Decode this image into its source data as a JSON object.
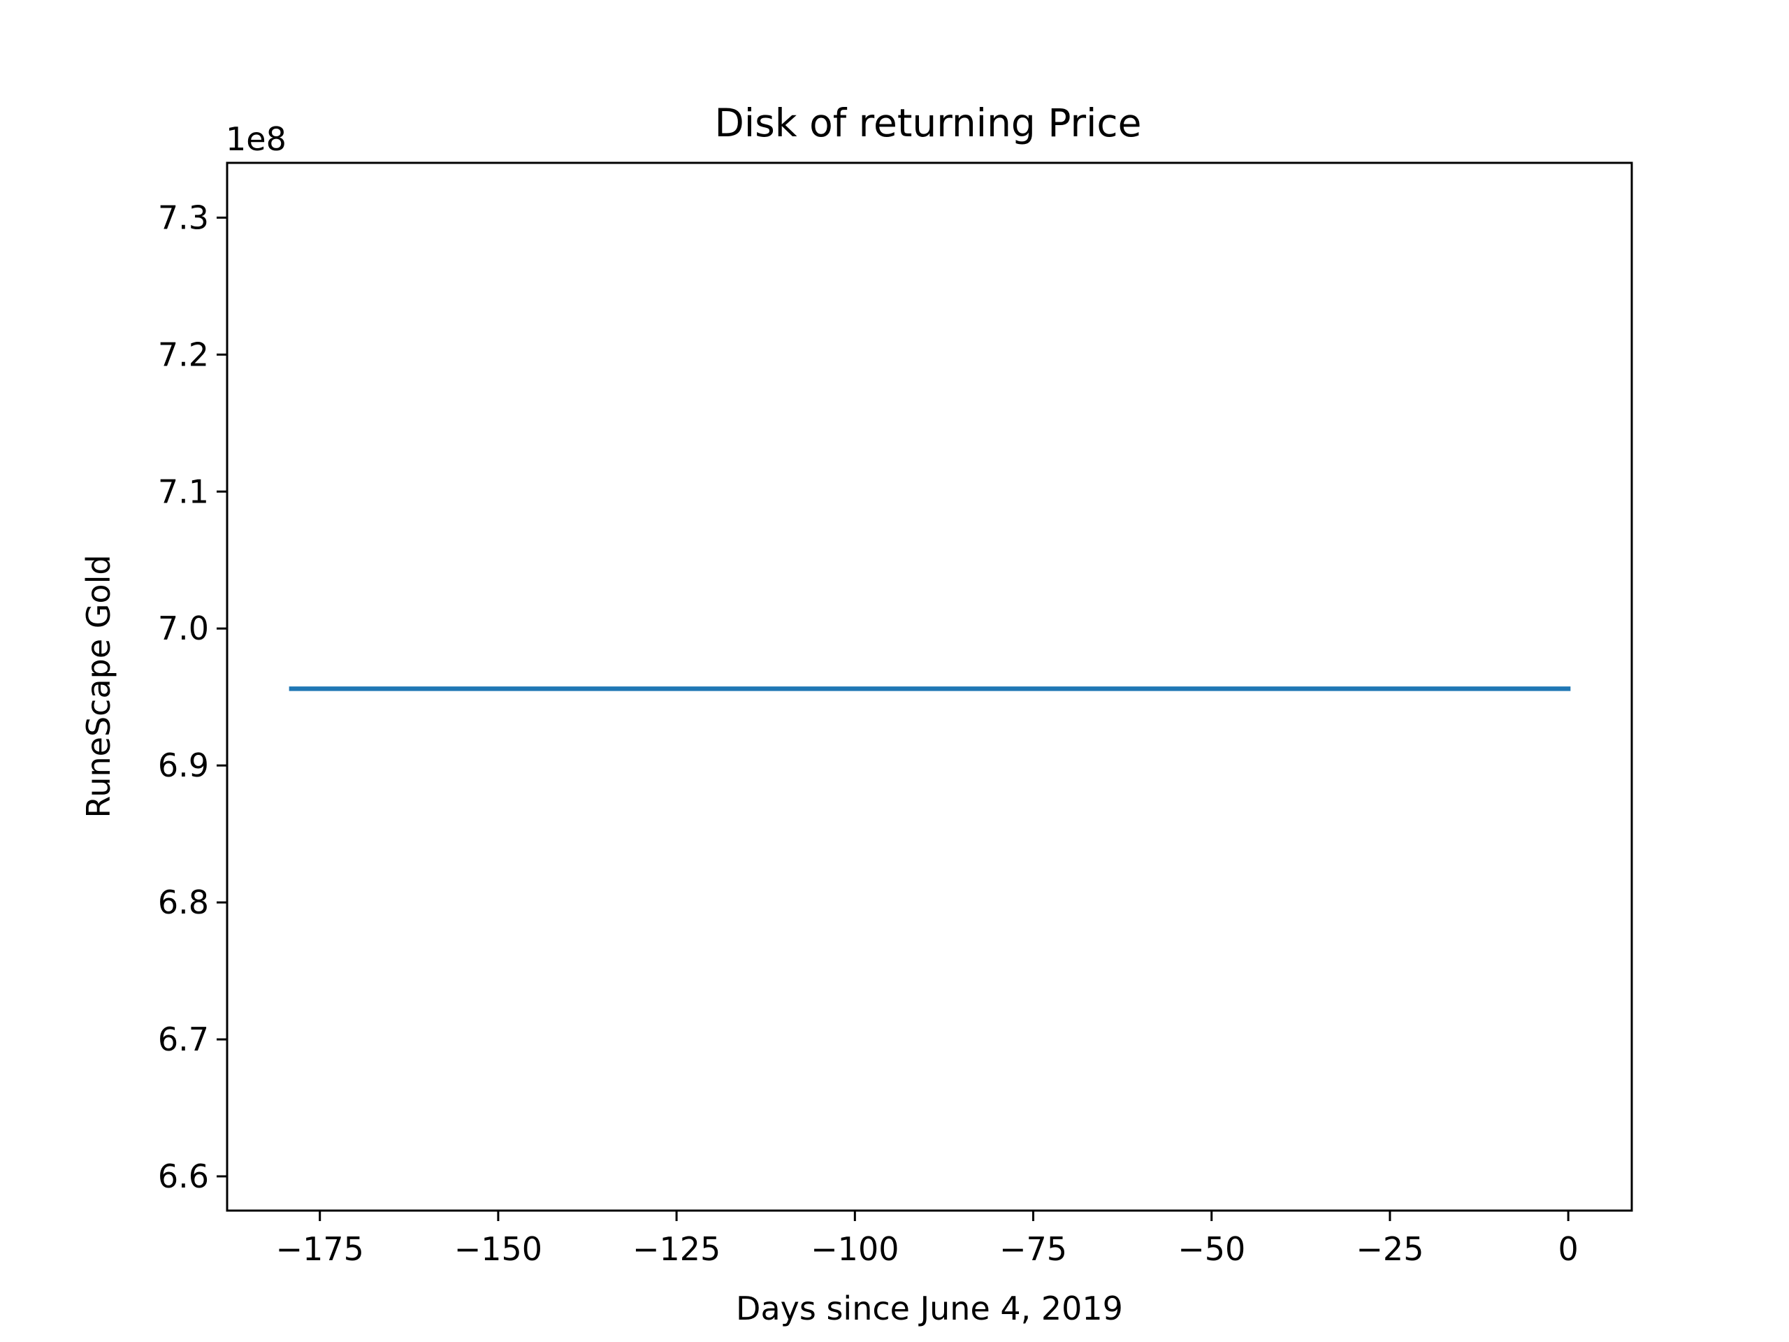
{
  "chart_data": {
    "type": "line",
    "title": "Disk of returning Price",
    "xlabel": "Days since June 4, 2019",
    "ylabel": "RuneScape Gold",
    "y_offset_label": "1e8",
    "xlim": [
      -188,
      8.9
    ],
    "ylim": [
      6.575,
      7.34
    ],
    "x_ticks": [
      -175,
      -150,
      -125,
      -100,
      -75,
      -50,
      -25,
      0
    ],
    "x_tick_labels": [
      "−175",
      "−150",
      "−125",
      "−100",
      "−75",
      "−50",
      "−25",
      "0"
    ],
    "y_ticks": [
      6.6,
      6.7,
      6.8,
      6.9,
      7.0,
      7.1,
      7.2,
      7.3
    ],
    "y_tick_labels": [
      "6.6",
      "6.7",
      "6.8",
      "6.9",
      "7.0",
      "7.1",
      "7.2",
      "7.3"
    ],
    "grid": false,
    "legend": "none",
    "series": [
      {
        "color": "#1f77b4",
        "x": [
          -179,
          0
        ],
        "y": [
          6.956,
          6.956
        ]
      }
    ]
  }
}
